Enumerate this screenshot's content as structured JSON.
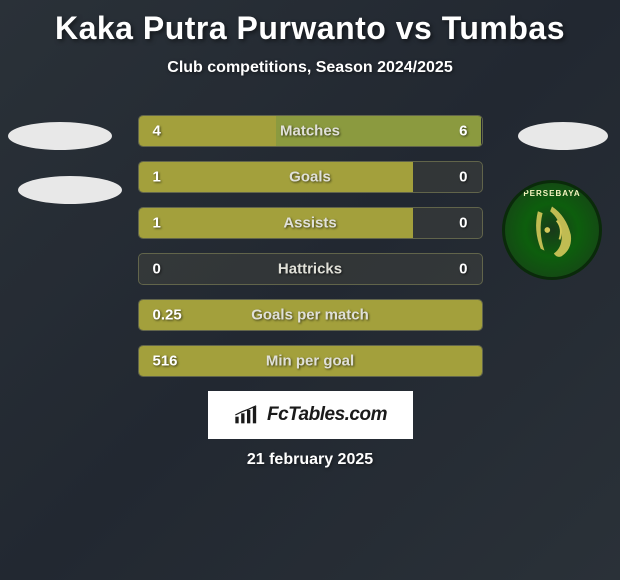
{
  "title": "Kaka Putra Purwanto vs Tumbas",
  "subtitle": "Club competitions, Season 2024/2025",
  "date": "21 february 2025",
  "footer_brand": "FcTables.com",
  "club_badge_text": "PERSEBAYA",
  "colors": {
    "background_start": "#2a3138",
    "background_mid": "#222831",
    "bar_left": "#a3a03c",
    "bar_right": "#8b9a3f",
    "bar_empty": "rgba(80, 80, 70, 0.35)",
    "oval": "#e8e8e8",
    "text": "#ffffff",
    "label_text": "#e0e0d8"
  },
  "stats": [
    {
      "label": "Matches",
      "left_val": "4",
      "right_val": "6",
      "left_pct": 40,
      "right_pct": 60
    },
    {
      "label": "Goals",
      "left_val": "1",
      "right_val": "0",
      "left_pct": 80,
      "right_pct": 0
    },
    {
      "label": "Assists",
      "left_val": "1",
      "right_val": "0",
      "left_pct": 80,
      "right_pct": 0
    },
    {
      "label": "Hattricks",
      "left_val": "0",
      "right_val": "0",
      "left_pct": 0,
      "right_pct": 0
    },
    {
      "label": "Goals per match",
      "left_val": "0.25",
      "right_val": "",
      "left_pct": 100,
      "right_pct": 0
    },
    {
      "label": "Min per goal",
      "left_val": "516",
      "right_val": "",
      "left_pct": 100,
      "right_pct": 0
    }
  ]
}
